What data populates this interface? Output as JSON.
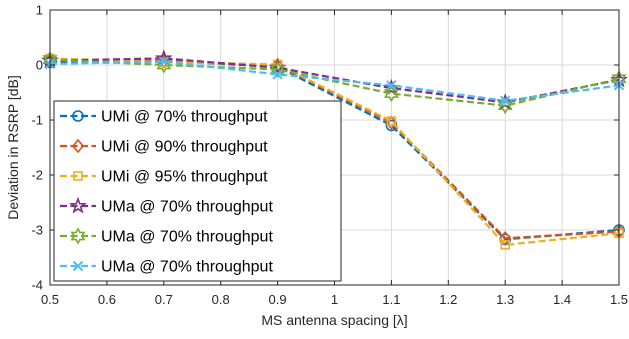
{
  "chart_data": {
    "type": "line",
    "xlabel": "MS antenna spacing [λ]",
    "ylabel": "Deviation in RSRP [dB]",
    "xlim": [
      0.5,
      1.5
    ],
    "ylim": [
      -4,
      1
    ],
    "xticks": [
      0.5,
      0.6,
      0.7,
      0.8,
      0.9,
      1.0,
      1.1,
      1.2,
      1.3,
      1.4,
      1.5
    ],
    "xtick_labels": [
      "0.5",
      "0.6",
      "0.7",
      "0.8",
      "0.9",
      "1",
      "1.1",
      "1.2",
      "1.3",
      "1.4",
      "1.5"
    ],
    "yticks": [
      -4,
      -3,
      -2,
      -1,
      0,
      1
    ],
    "ytick_labels": [
      "-4",
      "-3",
      "-2",
      "-1",
      "0",
      "1"
    ],
    "grid": true,
    "legend_position": "left",
    "x": [
      0.5,
      0.7,
      0.9,
      1.1,
      1.3,
      1.5
    ],
    "series": [
      {
        "name": "UMi @ 70% throughput",
        "color": "#0072BD",
        "marker": "circle",
        "values": [
          0.05,
          0.07,
          -0.03,
          -1.1,
          -3.17,
          -3.0
        ]
      },
      {
        "name": "UMi @ 90% throughput",
        "color": "#D95319",
        "marker": "diamond",
        "values": [
          0.1,
          0.07,
          0.0,
          -1.05,
          -3.15,
          -3.03
        ]
      },
      {
        "name": "UMi @ 95% throughput",
        "color": "#EDB120",
        "marker": "square",
        "values": [
          0.12,
          0.05,
          0.01,
          -1.02,
          -3.27,
          -3.06
        ]
      },
      {
        "name": "UMa @ 70% throughput",
        "color": "#7E2F8E",
        "marker": "star",
        "values": [
          0.08,
          0.12,
          -0.05,
          -0.42,
          -0.68,
          -0.27
        ]
      },
      {
        "name": "UMa @ 70% throughput",
        "color": "#77AC30",
        "marker": "hexagram",
        "values": [
          0.1,
          0.0,
          -0.08,
          -0.52,
          -0.74,
          -0.25
        ]
      },
      {
        "name": "UMa @ 70% throughput",
        "color": "#4DBEEE",
        "marker": "x",
        "values": [
          0.02,
          0.06,
          -0.17,
          -0.37,
          -0.65,
          -0.37
        ]
      }
    ]
  }
}
